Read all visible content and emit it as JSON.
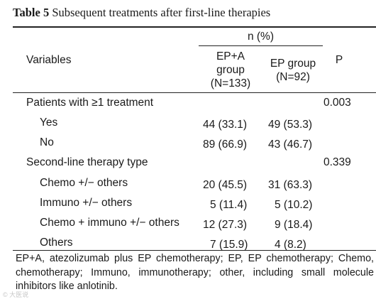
{
  "caption": {
    "label": "Table 5",
    "text": "Subsequent treatments after first-line therapies"
  },
  "header": {
    "group_span": "n (%)",
    "variables": "Variables",
    "col_epa_line1": "EP+A",
    "col_epa_line2": "group",
    "col_epa_line3": "(N=133)",
    "col_ep_line1": "EP group",
    "col_ep_line2": "(N=92)",
    "col_p": "P"
  },
  "rows": [
    {
      "label": "Patients with ≥1 treatment",
      "epa": "",
      "ep": "",
      "p": "0.003"
    },
    {
      "label": "Yes",
      "epa": "44 (33.1)",
      "ep": "49 (53.3)",
      "p": ""
    },
    {
      "label": "No",
      "epa": "89 (66.9)",
      "ep": "43 (46.7)",
      "p": ""
    },
    {
      "label": "Second-line therapy type",
      "epa": "",
      "ep": "",
      "p": "0.339"
    },
    {
      "label": "Chemo +/− others",
      "epa": "20 (45.5)",
      "ep": "31 (63.3)",
      "p": ""
    },
    {
      "label": "Immuno +/− others",
      "epa": "5 (11.4)",
      "ep": "5 (10.2)",
      "p": ""
    },
    {
      "label": "Chemo + immuno +/− others",
      "epa": "12 (27.3)",
      "ep": "9 (18.4)",
      "p": ""
    },
    {
      "label": "Others",
      "epa": "7 (15.9)",
      "ep": "4 (8.2)",
      "p": ""
    }
  ],
  "footnote": "EP+A, atezolizumab plus EP chemotherapy; EP, EP chemotherapy; Chemo, chemotherapy; Immuno, immunotherapy; other, including small molecule inhibitors like anlotinib.",
  "watermark": "© 大医说"
}
